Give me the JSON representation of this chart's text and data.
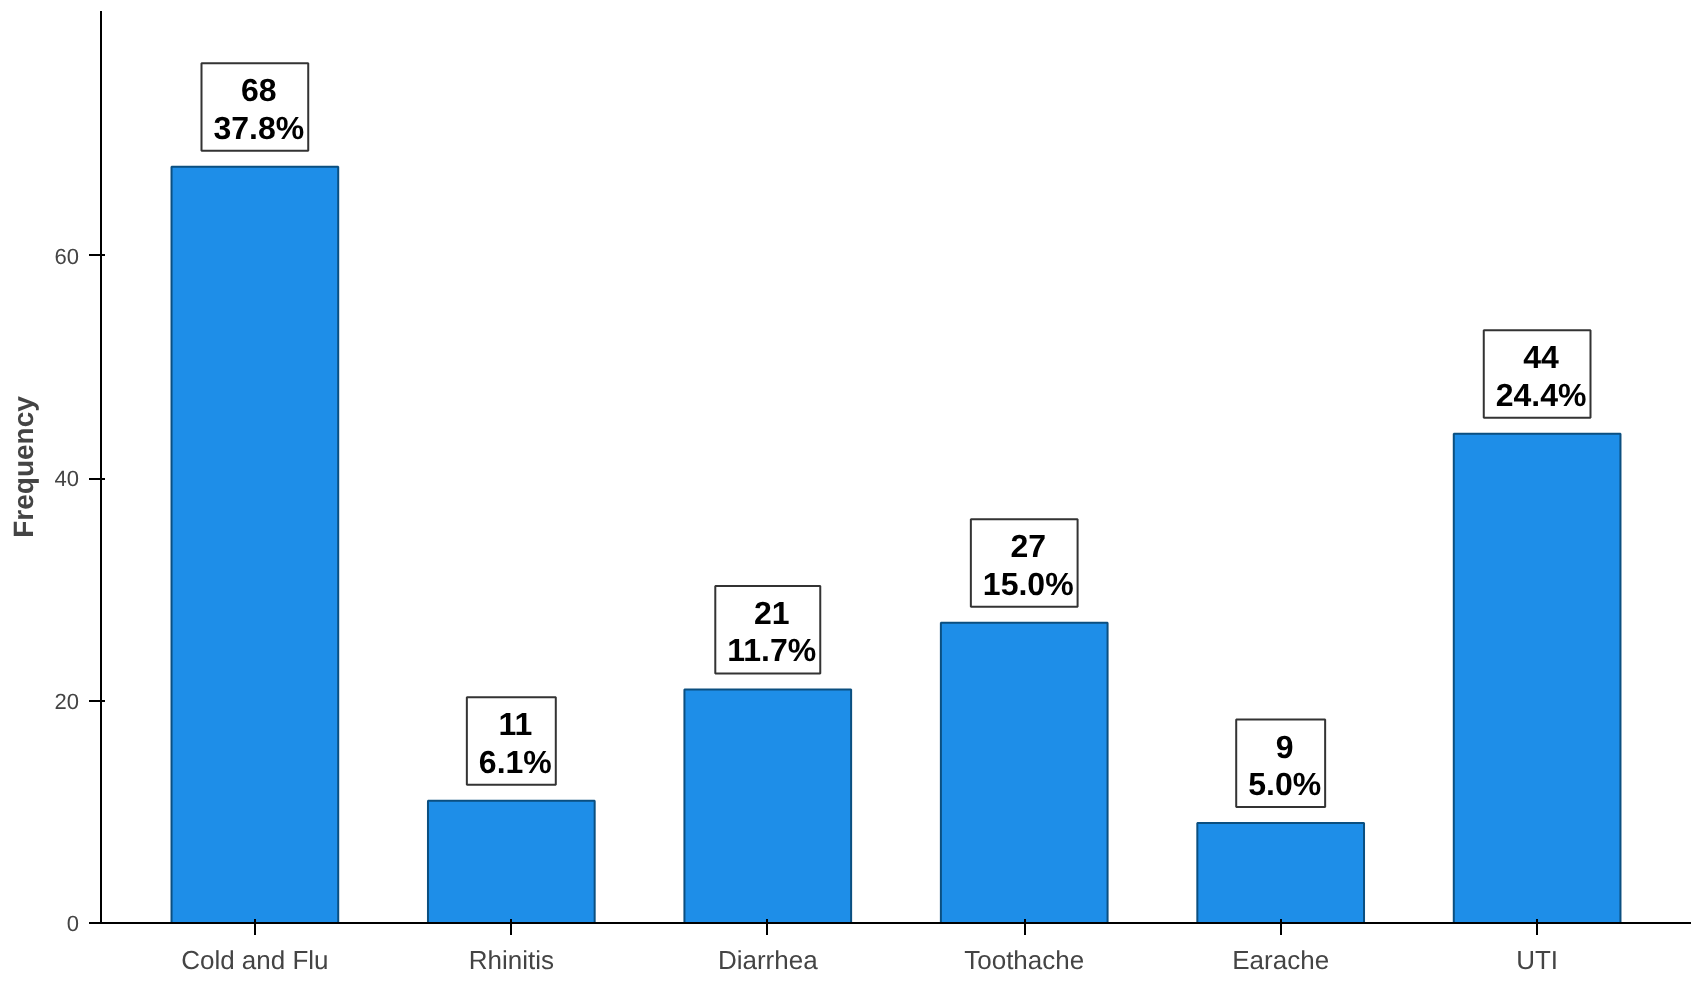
{
  "chart_data": {
    "type": "bar",
    "ylabel": "Frequency",
    "categories": [
      "Cold and Flu",
      "Rhinitis",
      "Diarrhea",
      "Toothache",
      "Earache",
      "UTI"
    ],
    "values": [
      68,
      11,
      21,
      27,
      9,
      44
    ],
    "value_labels": [
      "68\n37.8%",
      "11\n6.1%",
      "21\n11.7%",
      "27\n15.0%",
      "9\n5.0%",
      "44\n24.4%"
    ],
    "color": "#1e8ee8",
    "ylim": [
      0,
      82
    ],
    "yticks": [
      0,
      20,
      40,
      60
    ],
    "grid": false
  }
}
